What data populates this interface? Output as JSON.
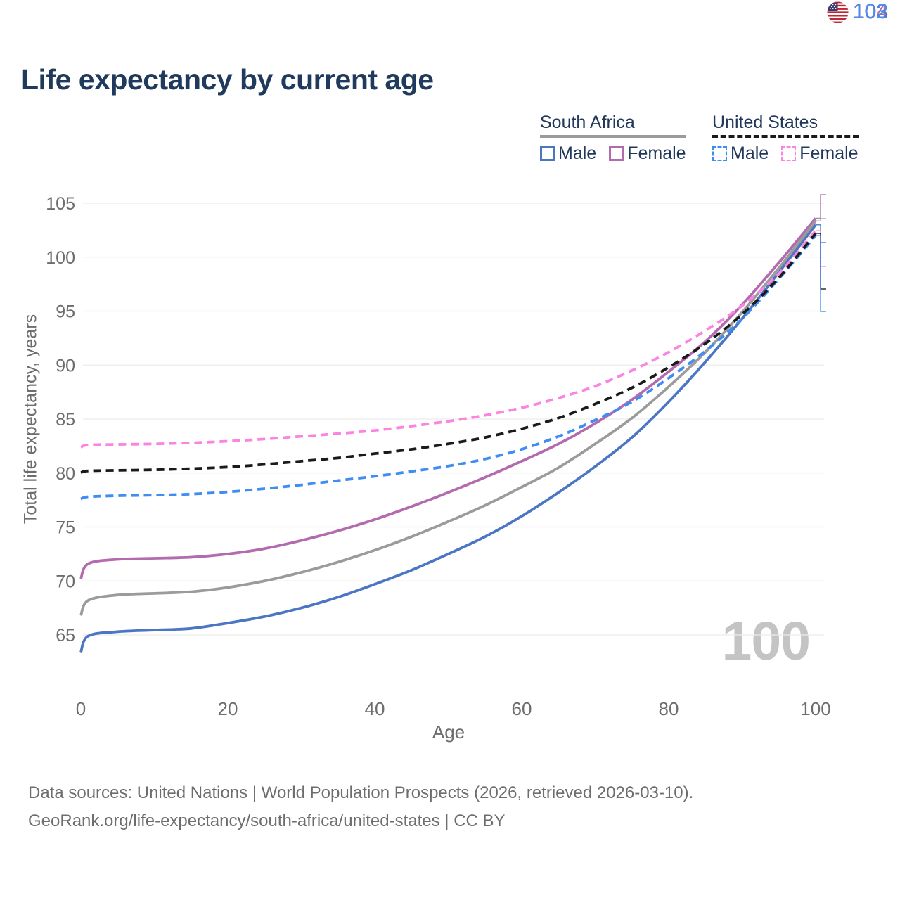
{
  "title": "Life expectancy by current age",
  "legend": {
    "groups": [
      {
        "country": "South Africa",
        "line_style": "solid",
        "underline_color": "#9b9b9b",
        "items": [
          {
            "label": "Male",
            "color": "#4a76c4"
          },
          {
            "label": "Female",
            "color": "#b36bb0"
          }
        ]
      },
      {
        "country": "United States",
        "line_style": "dashed",
        "underline_color": "#1a1a1a",
        "items": [
          {
            "label": "Male",
            "color": "#3f8df2"
          },
          {
            "label": "Female",
            "color": "#fb84e1"
          }
        ]
      }
    ]
  },
  "chart_data": {
    "type": "line",
    "title": "Life expectancy by current age",
    "xlabel": "Age",
    "ylabel": "Total life expectancy, years",
    "xlim": [
      0,
      100
    ],
    "ylim": [
      63,
      105.5
    ],
    "xticks": [
      0,
      20,
      40,
      60,
      80,
      100
    ],
    "yticks": [
      65,
      70,
      75,
      80,
      85,
      90,
      95,
      100,
      105
    ],
    "grid": "horizontal",
    "legend_position": "top-right",
    "x_ages": [
      0,
      1,
      5,
      10,
      15,
      20,
      25,
      30,
      35,
      40,
      45,
      50,
      55,
      60,
      65,
      70,
      75,
      80,
      85,
      90,
      95,
      100
    ],
    "series": [
      {
        "name": "South Africa Male",
        "country": "South Africa",
        "sex": "Male",
        "line_style": "solid",
        "color": "#4a76c4",
        "values": [
          63.4,
          64.9,
          65.3,
          65.45,
          65.6,
          66.1,
          66.7,
          67.5,
          68.5,
          69.7,
          71.0,
          72.5,
          74.1,
          76.0,
          78.2,
          80.6,
          83.3,
          86.6,
          90.3,
          94.3,
          98.6,
          103.0
        ]
      },
      {
        "name": "South Africa Female",
        "country": "South Africa",
        "sex": "Female",
        "line_style": "solid",
        "color": "#b36bb0",
        "values": [
          70.2,
          71.6,
          72.0,
          72.1,
          72.2,
          72.5,
          73.0,
          73.75,
          74.65,
          75.7,
          76.9,
          78.2,
          79.6,
          81.1,
          82.7,
          84.6,
          86.8,
          89.4,
          92.2,
          95.6,
          99.5,
          103.6
        ]
      },
      {
        "name": "South Africa Total",
        "country": "South Africa",
        "sex": "Total",
        "line_style": "solid",
        "color": "#9b9b9b",
        "values": [
          66.8,
          68.2,
          68.7,
          68.85,
          69.0,
          69.4,
          70.0,
          70.8,
          71.75,
          72.85,
          74.1,
          75.5,
          77.0,
          78.7,
          80.5,
          82.7,
          85.1,
          88.0,
          91.2,
          94.9,
          99.0,
          103.35
        ]
      },
      {
        "name": "United States Male",
        "country": "United States",
        "sex": "Male",
        "line_style": "dashed",
        "color": "#3f8df2",
        "values": [
          77.6,
          77.8,
          77.9,
          77.95,
          78.05,
          78.25,
          78.55,
          78.9,
          79.3,
          79.7,
          80.15,
          80.65,
          81.3,
          82.2,
          83.4,
          84.9,
          86.6,
          88.8,
          91.3,
          94.3,
          98.0,
          102.0
        ]
      },
      {
        "name": "United States Female",
        "country": "United States",
        "sex": "Female",
        "line_style": "dashed",
        "color": "#fb84e1",
        "values": [
          82.4,
          82.6,
          82.65,
          82.7,
          82.8,
          82.95,
          83.15,
          83.4,
          83.65,
          83.95,
          84.35,
          84.8,
          85.35,
          86.05,
          86.95,
          88.05,
          89.5,
          91.2,
          93.2,
          95.5,
          98.5,
          102.45
        ]
      },
      {
        "name": "United States Total",
        "country": "United States",
        "sex": "Total",
        "line_style": "dashed",
        "color": "#1a1a1a",
        "values": [
          80.05,
          80.2,
          80.25,
          80.3,
          80.4,
          80.55,
          80.8,
          81.1,
          81.4,
          81.8,
          82.2,
          82.7,
          83.3,
          84.1,
          85.1,
          86.4,
          87.9,
          89.8,
          92.0,
          94.7,
          98.1,
          102.2
        ]
      }
    ]
  },
  "end_labels": [
    {
      "value": "104",
      "color": "#ab6fae",
      "flag": "za",
      "series": "South Africa Female",
      "series_index": 1
    },
    {
      "value": "103",
      "color": "#a8a8a8",
      "flag": "za",
      "series": "South Africa Total",
      "series_index": 2
    },
    {
      "value": "103",
      "color": "#4d7cc7",
      "flag": "za",
      "series": "South Africa Male",
      "series_index": 0
    },
    {
      "value": "102",
      "color": "#f98be8",
      "flag": "us",
      "series": "United States Female",
      "series_index": 4
    },
    {
      "value": "102",
      "color": "#1a1a1a",
      "flag": "us",
      "series": "United States Total",
      "series_index": 5
    },
    {
      "value": "102",
      "color": "#4a8df5",
      "flag": "us",
      "series": "United States Male",
      "series_index": 3
    }
  ],
  "watermark": "100",
  "footer": {
    "line1": "Data sources: United Nations | World Population Prospects (2026, retrieved 2026-03-10).",
    "line2": "GeoRank.org/life-expectancy/south-africa/united-states | CC BY"
  },
  "colors": {
    "title": "#1f3a5c",
    "axis_text": "#6d6d6d",
    "grid": "#ececec",
    "watermark": "#c4c4c4"
  }
}
